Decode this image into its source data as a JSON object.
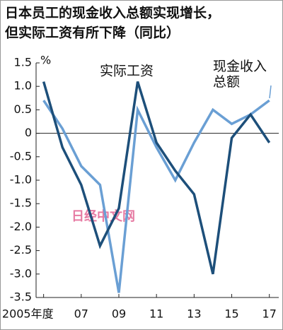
{
  "chart_data": {
    "type": "line",
    "title": [
      "日本员工的现金收入总额实现增长，",
      "但实际工资有所下降（同比）"
    ],
    "y_unit": "%",
    "watermark": "日经中文网",
    "x": [
      2005,
      2006,
      2007,
      2008,
      2009,
      2010,
      2011,
      2012,
      2013,
      2014,
      2015,
      2016,
      2017
    ],
    "series": [
      {
        "name": "实际工资",
        "color": "#1d4f7a",
        "values": [
          1.1,
          -0.3,
          -1.1,
          -2.4,
          -1.6,
          1.1,
          -0.2,
          -0.8,
          -1.3,
          -3.0,
          -0.1,
          0.4,
          -0.2
        ]
      },
      {
        "name": "现金收入总额",
        "color": "#6a9fd4",
        "values": [
          0.7,
          0.1,
          -0.7,
          -1.1,
          -3.4,
          0.5,
          -0.3,
          -1.0,
          -0.2,
          0.5,
          0.2,
          0.4,
          0.7
        ]
      }
    ],
    "xlim": [
      2004.6,
      2017.5
    ],
    "xticks": [
      {
        "value": 2005,
        "label": "2005年度"
      },
      {
        "value": 2007,
        "label": "07"
      },
      {
        "value": 2009,
        "label": "09"
      },
      {
        "value": 2011,
        "label": "11"
      },
      {
        "value": 2013,
        "label": "13"
      },
      {
        "value": 2015,
        "label": "15"
      },
      {
        "value": 2017,
        "label": "17"
      }
    ],
    "ylim": [
      -3.5,
      1.5
    ],
    "yticks": [
      1.5,
      {
        "value": 1,
        "label": "1.0"
      },
      0.5,
      0,
      -0.5,
      {
        "value": -1,
        "label": "-1.0"
      },
      -1.5,
      {
        "value": -2,
        "label": "-2.0"
      },
      -2.5,
      {
        "value": -3,
        "label": "-3.0"
      },
      -3.5
    ],
    "zero_line": true
  }
}
